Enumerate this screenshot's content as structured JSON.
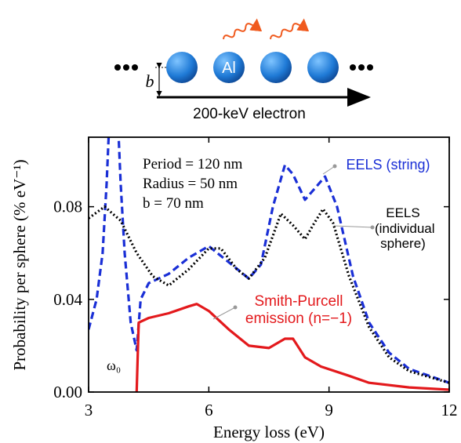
{
  "schematic": {
    "sphere_label": "Al",
    "impact_label": "b",
    "electron_label": "200-keV electron"
  },
  "chart_data": {
    "type": "line",
    "x_label": "Energy loss (eV)",
    "y_label": "Probability per sphere (% eV⁻¹)",
    "annotations": [
      "Period = 120 nm",
      "Radius = 50 nm",
      "b = 70 nm",
      "ω₀"
    ],
    "xlim": [
      3,
      12
    ],
    "xticks": [
      3,
      6,
      9,
      12
    ],
    "ylim": [
      0,
      0.11
    ],
    "yticks": [
      {
        "value": 0,
        "label": "0.00"
      },
      0.04,
      0.08
    ],
    "series": [
      {
        "name": "EELS (string)",
        "color": "#1a2fd6",
        "dash": "9,5",
        "x": [
          3,
          3.2,
          3.35,
          3.45,
          3.55,
          3.7,
          3.8,
          3.9,
          4.05,
          4.2,
          4.3,
          4.5,
          5,
          5.5,
          6,
          6.5,
          7,
          7.3,
          7.6,
          7.9,
          8.1,
          8.4,
          8.6,
          8.9,
          9.2,
          9.6,
          10,
          10.5,
          11,
          11.5,
          12
        ],
        "values": [
          0.027,
          0.04,
          0.06,
          0.09,
          0.13,
          0.13,
          0.09,
          0.06,
          0.03,
          0.018,
          0.04,
          0.047,
          0.051,
          0.058,
          0.063,
          0.056,
          0.049,
          0.055,
          0.08,
          0.098,
          0.094,
          0.083,
          0.087,
          0.093,
          0.08,
          0.05,
          0.03,
          0.017,
          0.01,
          0.007,
          0.004
        ]
      },
      {
        "name": "EELS (individual sphere)",
        "color": "#000000",
        "dash": "2,3",
        "x": [
          3,
          3.4,
          3.8,
          4.2,
          4.6,
          5,
          5.5,
          6,
          6.3,
          6.7,
          7,
          7.4,
          7.8,
          8.1,
          8.4,
          8.6,
          8.85,
          9.1,
          9.5,
          10,
          10.5,
          11,
          12
        ],
        "values": [
          0.075,
          0.08,
          0.074,
          0.06,
          0.05,
          0.046,
          0.053,
          0.062,
          0.062,
          0.053,
          0.049,
          0.058,
          0.077,
          0.072,
          0.066,
          0.072,
          0.079,
          0.073,
          0.05,
          0.028,
          0.015,
          0.009,
          0.004
        ]
      },
      {
        "name": "Smith-Purcell emission (n=−1)",
        "color": "#e3191c",
        "dash": "",
        "x": [
          4.2,
          4.25,
          4.5,
          5,
          5.5,
          5.7,
          6,
          6.5,
          7,
          7.5,
          7.9,
          8.1,
          8.4,
          8.8,
          9.5,
          10,
          11,
          12
        ],
        "values": [
          0,
          0.03,
          0.032,
          0.034,
          0.037,
          0.038,
          0.035,
          0.027,
          0.02,
          0.019,
          0.023,
          0.023,
          0.015,
          0.011,
          0.007,
          0.004,
          0.002,
          0.001
        ]
      }
    ]
  }
}
